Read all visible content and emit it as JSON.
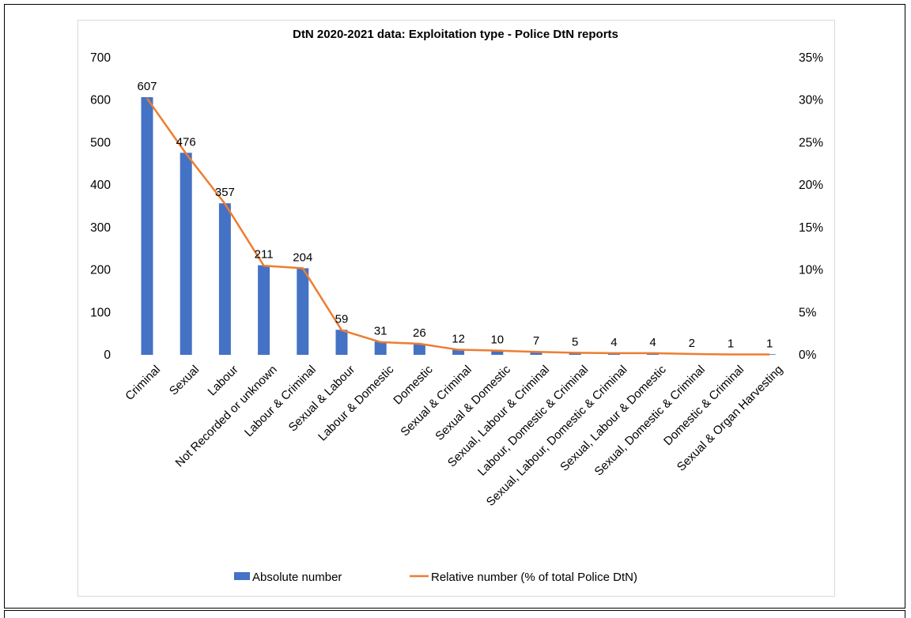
{
  "chart_data": {
    "type": "bar",
    "title": "DtN 2020-2021 data: Exploitation type - Police DtN reports",
    "categories": [
      "Criminal",
      "Sexual",
      "Labour",
      "Not Recorded or unknown",
      "Labour & Criminal",
      "Sexual & Labour",
      "Labour & Domestic",
      "Domestic",
      "Sexual & Criminal",
      "Sexual & Domestic",
      "Sexual, Labour & Criminal",
      "Labour, Domestic & Criminal",
      "Sexual, Labour, Domestic & Criminal",
      "Sexual, Labour & Domestic",
      "Sexual, Domestic & Criminal",
      "Domestic & Criminal",
      "Sexual & Organ Harvesting"
    ],
    "series": [
      {
        "name": "Absolute number",
        "type": "bar",
        "axis": "left",
        "color": "#4472c4",
        "values": [
          607,
          476,
          357,
          211,
          204,
          59,
          31,
          26,
          12,
          10,
          7,
          5,
          4,
          4,
          2,
          1,
          1
        ]
      },
      {
        "name": "Relative number (% of total Police DtN)",
        "type": "line",
        "axis": "right",
        "color": "#ed7d31",
        "values": [
          30.2,
          23.7,
          17.8,
          10.5,
          10.2,
          2.9,
          1.5,
          1.3,
          0.6,
          0.5,
          0.35,
          0.25,
          0.2,
          0.2,
          0.1,
          0.05,
          0.05
        ]
      }
    ],
    "data_labels": [
      "607",
      "476",
      "357",
      "211",
      "204",
      "59",
      "31",
      "26",
      "12",
      "10",
      "7",
      "5",
      "4",
      "4",
      "2",
      "1",
      "1"
    ],
    "y_left": {
      "min": 0,
      "max": 700,
      "ticks": [
        "0",
        "100",
        "200",
        "300",
        "400",
        "500",
        "600",
        "700"
      ]
    },
    "y_right": {
      "min": 0,
      "max": 35,
      "ticks": [
        "0%",
        "5%",
        "10%",
        "15%",
        "20%",
        "25%",
        "30%",
        "35%"
      ]
    },
    "legend": {
      "position": "bottom",
      "items": [
        "Absolute number",
        "Relative number (% of total Police DtN)"
      ]
    },
    "grid": false
  }
}
